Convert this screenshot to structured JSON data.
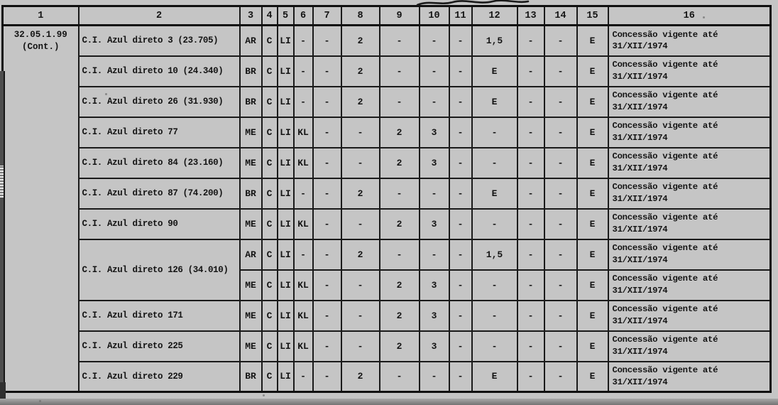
{
  "colors": {
    "paper": "#c5c5c5",
    "ink": "#141414",
    "border": "#101010"
  },
  "table": {
    "headers": [
      "1",
      "2",
      "3",
      "4",
      "5",
      "6",
      "7",
      "8",
      "9",
      "10",
      "11",
      "12",
      "13",
      "14",
      "15",
      "16"
    ],
    "group": {
      "code": "32.05.1.99",
      "cont": "(Cont.)"
    },
    "rows": [
      {
        "name": "C.I. Azul direto 3 (23.705)",
        "values": [
          "AR",
          "C",
          "LI",
          "-",
          "-",
          "2",
          "-",
          "-",
          "-",
          "1,5",
          "-",
          "-",
          "E"
        ],
        "note": [
          "Concessão vigente até",
          "31/XII/1974"
        ]
      },
      {
        "name": "C.I. Azul direto 10 (24.340)",
        "values": [
          "BR",
          "C",
          "LI",
          "-",
          "-",
          "2",
          "-",
          "-",
          "-",
          "E",
          "-",
          "-",
          "E"
        ],
        "note": [
          "Concessão vigente até",
          "31/XII/1974"
        ]
      },
      {
        "name": "C.I. Azul direto 26 (31.930)",
        "values": [
          "BR",
          "C",
          "LI",
          "-",
          "-",
          "2",
          "-",
          "-",
          "-",
          "E",
          "-",
          "-",
          "E"
        ],
        "note": [
          "Concessão vigente até",
          "31/XII/1974"
        ]
      },
      {
        "name": "C.I. Azul direto 77",
        "values": [
          "ME",
          "C",
          "LI",
          "KL",
          "-",
          "-",
          "2",
          "3",
          "-",
          "-",
          "-",
          "-",
          "E"
        ],
        "note": [
          "Concessão vigente até",
          "31/XII/1974"
        ]
      },
      {
        "name": "C.I. Azul direto 84 (23.160)",
        "values": [
          "ME",
          "C",
          "LI",
          "KL",
          "-",
          "-",
          "2",
          "3",
          "-",
          "-",
          "-",
          "-",
          "E"
        ],
        "note": [
          "Concessão vigente até",
          "31/XII/1974"
        ]
      },
      {
        "name": "C.I. Azul direto 87 (74.200)",
        "values": [
          "BR",
          "C",
          "LI",
          "-",
          "-",
          "2",
          "-",
          "-",
          "-",
          "E",
          "-",
          "-",
          "E"
        ],
        "note": [
          "Concessão vigente  até",
          "31/XII/1974"
        ]
      },
      {
        "name": "C.I. Azul direto 90",
        "values": [
          "ME",
          "C",
          "LI",
          "KL",
          "-",
          "-",
          "2",
          "3",
          "-",
          "-",
          "-",
          "-",
          "E"
        ],
        "note": [
          "Concessão vigente até",
          "31/XII/1974"
        ]
      },
      {
        "name": "C.I. Azul direto 126 (34.010)",
        "rowspan": 2,
        "values": [
          "AR",
          "C",
          "LI",
          "-",
          "-",
          "2",
          "-",
          "-",
          "-",
          "1,5",
          "-",
          "-",
          "E"
        ],
        "note": [
          "Concessão vigente até",
          "31/XII/1974"
        ]
      },
      {
        "merged": true,
        "values": [
          "ME",
          "C",
          "LI",
          "KL",
          "-",
          "-",
          "2",
          "3",
          "-",
          "-",
          "-",
          "-",
          "E"
        ],
        "note": [
          "Concessão vigente até",
          "31/XII/1974"
        ]
      },
      {
        "name": "C.I. Azul direto 171",
        "values": [
          "ME",
          "C",
          "LI",
          "KL",
          "-",
          "-",
          "2",
          "3",
          "-",
          "-",
          "-",
          "-",
          "E"
        ],
        "note": [
          "Concessão vigente até",
          "31/XII/1974"
        ]
      },
      {
        "name": "C.I. Azul direto 225",
        "values": [
          "ME",
          "C",
          "LI",
          "KL",
          "-",
          "-",
          "2",
          "3",
          "-",
          "-",
          "-",
          "-",
          "E"
        ],
        "note": [
          "Concessão vigente até",
          "31/XII/1974"
        ]
      },
      {
        "name": "C.I. Azul direto 229",
        "values": [
          "BR",
          "C",
          "LI",
          "-",
          "-",
          "2",
          "-",
          "-",
          "-",
          "E",
          "-",
          "-",
          "E"
        ],
        "note": [
          "Concessão vigente até",
          "31/XII/1974"
        ]
      }
    ]
  }
}
